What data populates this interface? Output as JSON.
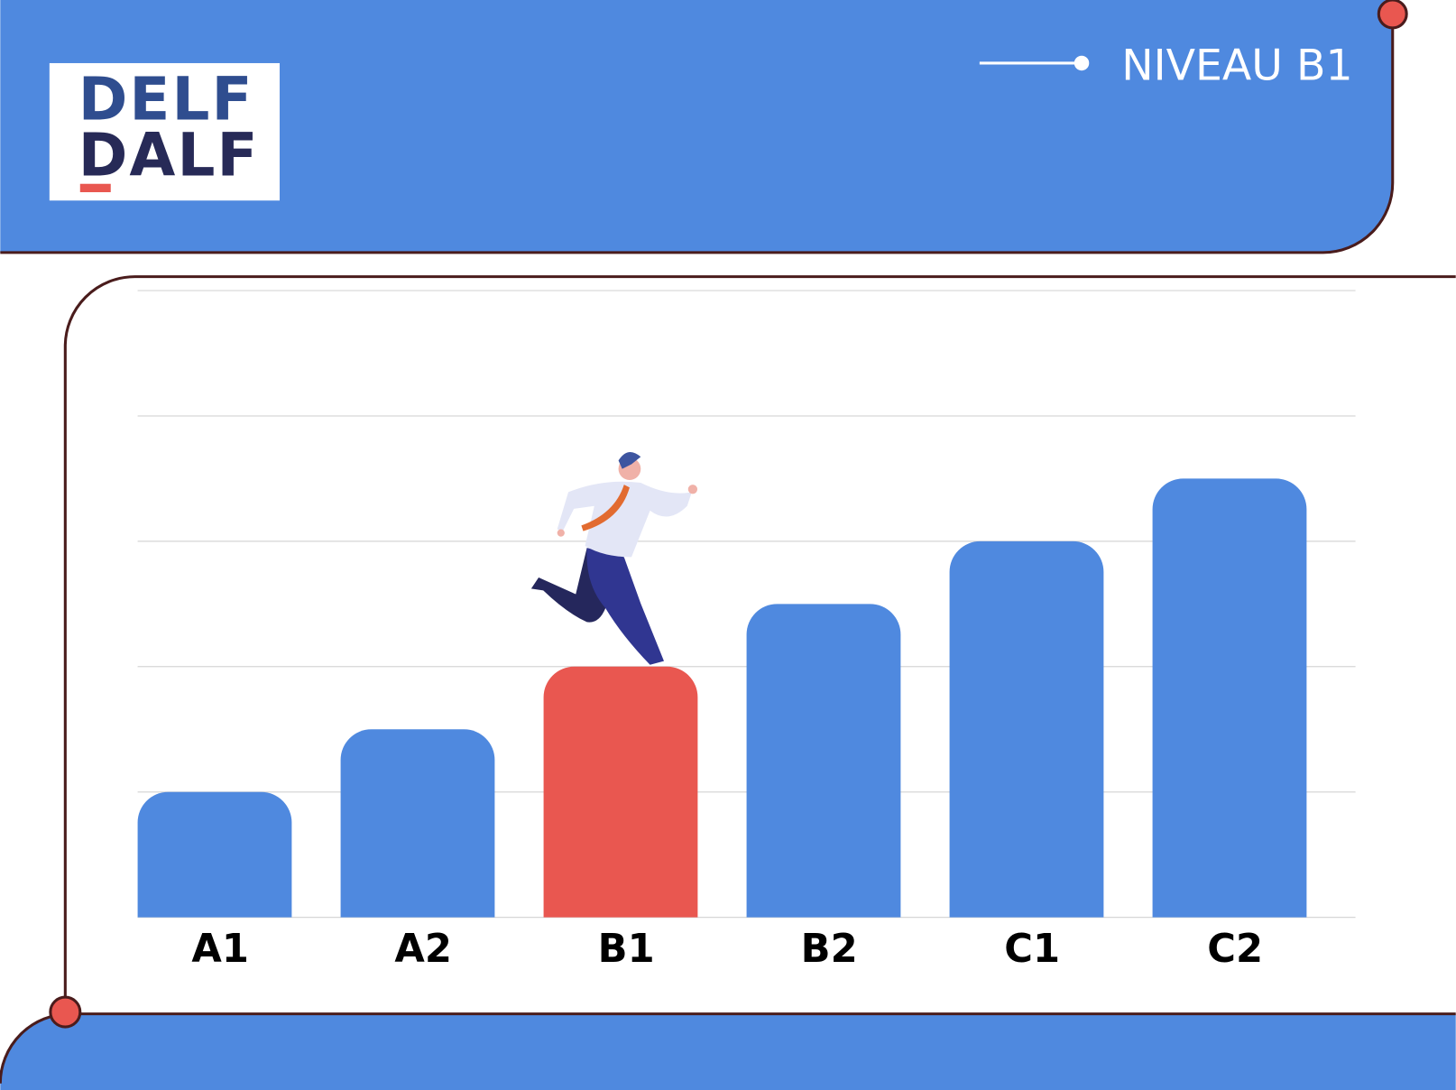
{
  "header": {
    "logo": [
      "DELF",
      "DALF"
    ],
    "badge": "NIVEAU B1"
  },
  "chart_data": {
    "type": "bar",
    "categories": [
      "A1",
      "A2",
      "B1",
      "B2",
      "C1",
      "C2"
    ],
    "values": [
      1,
      1.5,
      2,
      2.5,
      3,
      3.5
    ],
    "colors": [
      "#4f89df",
      "#4f89df",
      "#e95750",
      "#4f89df",
      "#4f89df",
      "#4f89df"
    ],
    "ylim": [
      0,
      5
    ],
    "yticks": [
      0,
      1,
      2,
      3,
      4,
      5
    ],
    "grid": true
  }
}
